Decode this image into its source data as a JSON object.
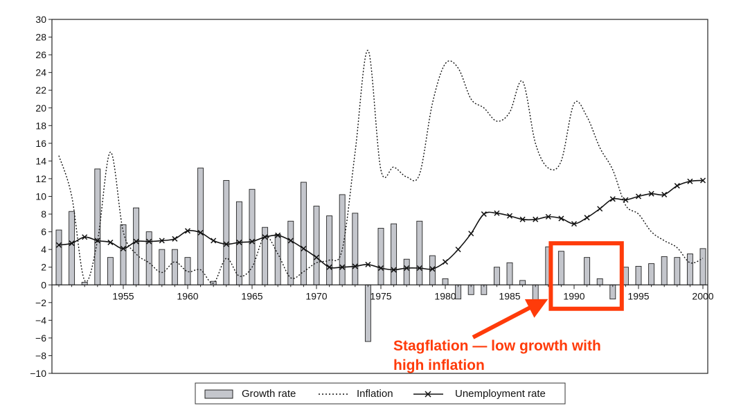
{
  "chart_data": {
    "type": "bar",
    "x": [
      1950,
      1951,
      1952,
      1953,
      1954,
      1955,
      1956,
      1957,
      1958,
      1959,
      1960,
      1961,
      1962,
      1963,
      1964,
      1965,
      1966,
      1967,
      1968,
      1969,
      1970,
      1971,
      1972,
      1973,
      1974,
      1975,
      1976,
      1977,
      1978,
      1979,
      1980,
      1981,
      1982,
      1983,
      1984,
      1985,
      1986,
      1987,
      1988,
      1989,
      1990,
      1991,
      1992,
      1993,
      1994,
      1995,
      1996,
      1997,
      1998,
      1999,
      2000
    ],
    "xticks": [
      1955,
      1960,
      1965,
      1970,
      1975,
      1980,
      1985,
      1990,
      1995,
      2000
    ],
    "ylim": [
      -10,
      30
    ],
    "yticks": [
      -10,
      -8,
      -6,
      -4,
      -2,
      0,
      2,
      4,
      6,
      8,
      10,
      12,
      14,
      16,
      18,
      20,
      22,
      24,
      26,
      28,
      30
    ],
    "grid": false,
    "legend_placement": "bottom-center",
    "series": [
      {
        "name": "Growth rate",
        "kind": "bar",
        "color": "#c4c6cc",
        "values": [
          6.2,
          8.3,
          0.3,
          13.1,
          3.1,
          6.8,
          8.7,
          6.0,
          4.0,
          4.0,
          3.1,
          13.2,
          0.4,
          11.8,
          9.4,
          10.8,
          6.5,
          5.7,
          7.2,
          11.6,
          8.9,
          7.8,
          10.2,
          8.1,
          -6.4,
          6.4,
          6.9,
          2.9,
          7.2,
          3.3,
          0.7,
          -1.6,
          -1.1,
          -1.1,
          2.0,
          2.5,
          0.5,
          -2.3,
          4.3,
          3.8,
          0.0,
          3.1,
          0.7,
          -1.6,
          2.0,
          2.1,
          2.4,
          3.2,
          3.1,
          3.5,
          4.1
        ]
      },
      {
        "name": "Inflation",
        "kind": "line",
        "style": "dotted",
        "color": "#111111",
        "values": [
          14.6,
          10.0,
          0.5,
          5.0,
          15.0,
          6.0,
          3.5,
          2.5,
          1.4,
          2.6,
          1.5,
          1.7,
          0.2,
          3.0,
          1.0,
          2.0,
          5.5,
          3.5,
          0.8,
          1.5,
          2.5,
          2.8,
          4.0,
          15.0,
          26.5,
          13.0,
          13.3,
          12.2,
          12.5,
          20.5,
          25.0,
          24.5,
          21.0,
          20.0,
          18.5,
          19.5,
          23.0,
          16.0,
          13.2,
          14.0,
          20.5,
          19.0,
          15.5,
          13.0,
          9.0,
          8.0,
          6.0,
          5.0,
          4.2,
          2.5,
          3.0
        ]
      },
      {
        "name": "Unemployment rate",
        "kind": "line-markers",
        "marker": "x",
        "color": "#111111",
        "values": [
          4.5,
          4.7,
          5.4,
          5.0,
          4.8,
          4.1,
          4.9,
          4.9,
          5.0,
          5.2,
          6.1,
          5.9,
          5.0,
          4.6,
          4.8,
          4.9,
          5.4,
          5.6,
          5.0,
          4.1,
          3.1,
          2.0,
          2.0,
          2.1,
          2.3,
          1.9,
          1.7,
          1.9,
          1.9,
          1.8,
          2.6,
          4.0,
          5.8,
          8.0,
          8.1,
          7.8,
          7.4,
          7.4,
          7.7,
          7.5,
          6.9,
          7.6,
          8.6,
          9.7,
          9.6,
          10.0,
          10.3,
          10.2,
          11.2,
          11.7,
          11.8
        ]
      }
    ],
    "annotation": {
      "text_lines": [
        "Stagflation — low growth with",
        "high inflation"
      ],
      "color": "#ff3b0a",
      "highlight_range": [
        1989,
        1993
      ]
    }
  }
}
